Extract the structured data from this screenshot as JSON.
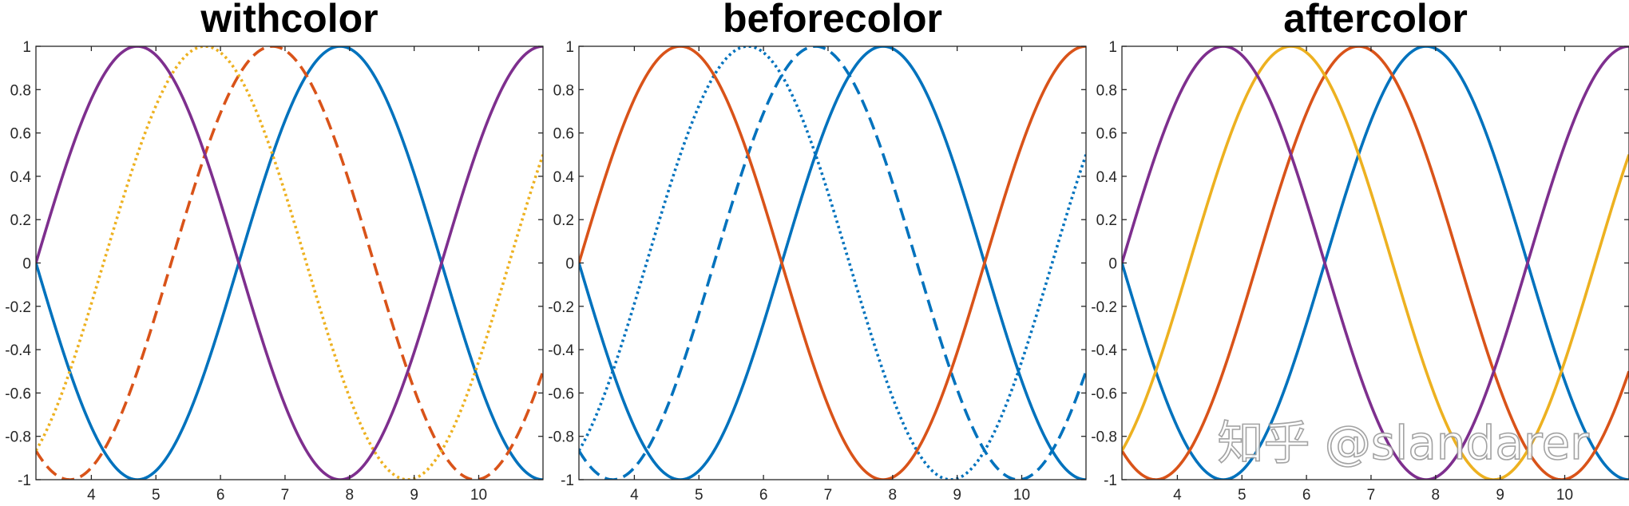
{
  "watermark": "知乎 @slandarer",
  "chart_data": [
    {
      "type": "line",
      "title": "withcolor",
      "xlim": [
        3.1416,
        10.9956
      ],
      "ylim": [
        -1,
        1
      ],
      "x_ticks": [
        4,
        5,
        6,
        7,
        8,
        9,
        10
      ],
      "y_ticks": [
        1,
        0.8,
        0.6,
        0.4,
        0.2,
        0,
        -0.2,
        -0.4,
        -0.6,
        -0.8,
        -1
      ],
      "y_tick_labels": [
        "1",
        "0.8",
        "0.6",
        "0.4",
        "0.2",
        "0",
        "-0.2",
        "-0.4",
        "-0.6",
        "-0.8",
        "-1"
      ],
      "x_function": "linspace(pi, 3.5*pi, 200)",
      "grid": false,
      "series": [
        {
          "expression": "sin(x)",
          "color": "#0072BD",
          "line_style": "solid"
        },
        {
          "expression": "sin(x + pi/3)",
          "color": "#D95319",
          "line_style": "dashed"
        },
        {
          "expression": "sin(x + 2*pi/3)",
          "color": "#EDB120",
          "line_style": "dotted"
        },
        {
          "expression": "sin(x + pi)",
          "color": "#7E2F8E",
          "line_style": "solid"
        }
      ]
    },
    {
      "type": "line",
      "title": "beforecolor",
      "xlim": [
        3.1416,
        10.9956
      ],
      "ylim": [
        -1,
        1
      ],
      "x_ticks": [
        4,
        5,
        6,
        7,
        8,
        9,
        10
      ],
      "y_ticks": [
        1,
        0.8,
        0.6,
        0.4,
        0.2,
        0,
        -0.2,
        -0.4,
        -0.6,
        -0.8,
        -1
      ],
      "y_tick_labels": [
        "1",
        "0.8",
        "0.6",
        "0.4",
        "0.2",
        "0",
        "-0.2",
        "-0.4",
        "-0.6",
        "-0.8",
        "-1"
      ],
      "x_function": "linspace(pi, 3.5*pi, 200)",
      "grid": false,
      "series": [
        {
          "expression": "sin(x)",
          "color": "#0072BD",
          "line_style": "solid"
        },
        {
          "expression": "sin(x + pi/3)",
          "color": "#0072BD",
          "line_style": "dashed"
        },
        {
          "expression": "sin(x + 2*pi/3)",
          "color": "#0072BD",
          "line_style": "dotted"
        },
        {
          "expression": "sin(x + pi)",
          "color": "#D95319",
          "line_style": "solid"
        }
      ]
    },
    {
      "type": "line",
      "title": "aftercolor",
      "xlim": [
        3.1416,
        10.9956
      ],
      "ylim": [
        -1,
        1
      ],
      "x_ticks": [
        4,
        5,
        6,
        7,
        8,
        9,
        10
      ],
      "y_ticks": [
        1,
        0.8,
        0.6,
        0.4,
        0.2,
        0,
        -0.2,
        -0.4,
        -0.6,
        -0.8,
        -1
      ],
      "y_tick_labels": [
        "1",
        "0.8",
        "0.6",
        "0.4",
        "0.2",
        "0",
        "-0.2",
        "-0.4",
        "-0.6",
        "-0.8",
        "-1"
      ],
      "x_function": "linspace(pi, 3.5*pi, 200)",
      "grid": false,
      "series": [
        {
          "expression": "sin(x)",
          "color": "#0072BD",
          "line_style": "solid"
        },
        {
          "expression": "sin(x + pi/3)",
          "color": "#D95319",
          "line_style": "solid"
        },
        {
          "expression": "sin(x + 2*pi/3)",
          "color": "#EDB120",
          "line_style": "solid"
        },
        {
          "expression": "sin(x + pi)",
          "color": "#7E2F8E",
          "line_style": "solid"
        }
      ]
    }
  ]
}
